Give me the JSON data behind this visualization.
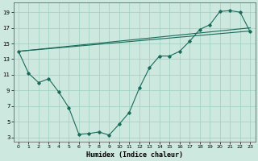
{
  "xlabel": "Humidex (Indice chaleur)",
  "background_color": "#cce8df",
  "grid_color": "#9ecfbe",
  "line_color": "#1a6b5a",
  "xlim": [
    -0.5,
    23.5
  ],
  "ylim": [
    2.5,
    20.2
  ],
  "yticks": [
    3,
    5,
    7,
    9,
    11,
    13,
    15,
    17,
    19
  ],
  "xticks": [
    0,
    1,
    2,
    3,
    4,
    5,
    6,
    7,
    8,
    9,
    10,
    11,
    12,
    13,
    14,
    15,
    16,
    17,
    18,
    19,
    20,
    21,
    22,
    23
  ],
  "line1_x": [
    0,
    1,
    2,
    3,
    4,
    5,
    6,
    7,
    8,
    9,
    10,
    11,
    12,
    13,
    14,
    15,
    16,
    17,
    18,
    19,
    20,
    21,
    22,
    23
  ],
  "line1_y": [
    14.0,
    11.2,
    10.0,
    10.5,
    8.8,
    6.8,
    3.4,
    3.5,
    3.7,
    3.3,
    4.7,
    6.2,
    9.3,
    11.9,
    13.4,
    13.4,
    14.0,
    15.3,
    16.8,
    17.4,
    19.1,
    19.2,
    19.0,
    16.5
  ],
  "line2_x": [
    0,
    23
  ],
  "line2_y": [
    14.0,
    17.0
  ],
  "line3_x": [
    0,
    23
  ],
  "line3_y": [
    14.0,
    16.6
  ]
}
